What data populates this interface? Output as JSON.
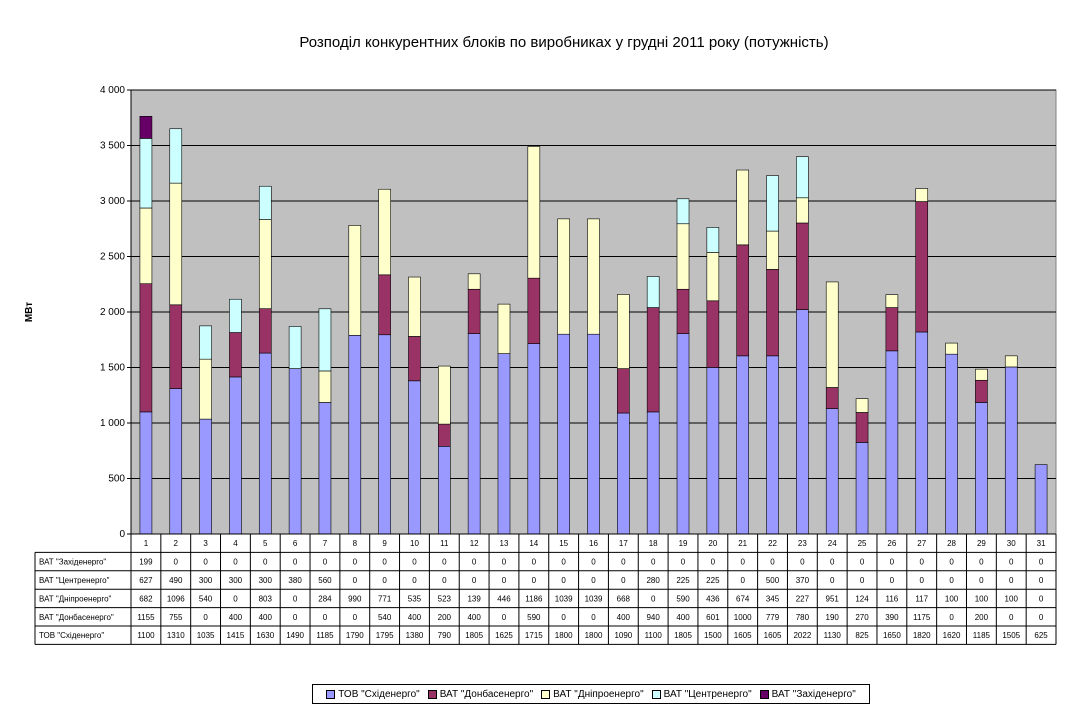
{
  "chart_data": {
    "type": "bar",
    "stacked": true,
    "title": "Розподіл конкурентних блоків по виробниках у грудні 2011 року (потужність)",
    "ylabel": "МВт",
    "xlabel": "",
    "ylim": [
      0,
      4000
    ],
    "yticks": [
      0,
      500,
      1000,
      1500,
      2000,
      2500,
      3000,
      3500,
      4000
    ],
    "ytick_labels": [
      "0",
      "500",
      "1 000",
      "1 500",
      "2 000",
      "2 500",
      "3 000",
      "3 500",
      "4 000"
    ],
    "grid": true,
    "plot_background": "#c0c0c0",
    "legend_position": "bottom",
    "categories": [
      "1",
      "2",
      "3",
      "4",
      "5",
      "6",
      "7",
      "8",
      "9",
      "10",
      "11",
      "12",
      "13",
      "14",
      "15",
      "16",
      "17",
      "18",
      "19",
      "20",
      "21",
      "22",
      "23",
      "24",
      "25",
      "26",
      "27",
      "28",
      "29",
      "30",
      "31"
    ],
    "series": [
      {
        "name": "ТОВ \"Східенерго\"",
        "color": "#9999ff",
        "values": [
          1100,
          1310,
          1035,
          1415,
          1630,
          1490,
          1185,
          1790,
          1795,
          1380,
          790,
          1805,
          1625,
          1715,
          1800,
          1800,
          1090,
          1100,
          1805,
          1500,
          1605,
          1605,
          2022,
          1130,
          825,
          1650,
          1820,
          1620,
          1185,
          1505,
          625
        ]
      },
      {
        "name": "ВАТ \"Донбасенерго\"",
        "color": "#993366",
        "values": [
          1155,
          755,
          0,
          400,
          400,
          0,
          0,
          0,
          540,
          400,
          200,
          400,
          0,
          590,
          0,
          0,
          400,
          940,
          400,
          601,
          1000,
          779,
          780,
          190,
          270,
          390,
          1175,
          0,
          200,
          0,
          0
        ]
      },
      {
        "name": "ВАТ \"Дніпроенерго\"",
        "color": "#ffffcc",
        "values": [
          682,
          1096,
          540,
          0,
          803,
          0,
          284,
          990,
          771,
          535,
          523,
          139,
          446,
          1186,
          1039,
          1039,
          668,
          0,
          590,
          436,
          674,
          345,
          227,
          951,
          124,
          116,
          117,
          100,
          100,
          100,
          0
        ]
      },
      {
        "name": "ВАТ \"Центренерго\"",
        "color": "#ccffff",
        "values": [
          627,
          490,
          300,
          300,
          300,
          380,
          560,
          0,
          0,
          0,
          0,
          0,
          0,
          0,
          0,
          0,
          0,
          280,
          225,
          225,
          0,
          500,
          370,
          0,
          0,
          0,
          0,
          0,
          0,
          0,
          0
        ]
      },
      {
        "name": "ВАТ \"Західенерго\"",
        "color": "#660066",
        "values": [
          199,
          0,
          0,
          0,
          0,
          0,
          0,
          0,
          0,
          0,
          0,
          0,
          0,
          0,
          0,
          0,
          0,
          0,
          0,
          0,
          0,
          0,
          0,
          0,
          0,
          0,
          0,
          0,
          0,
          0,
          0
        ]
      }
    ],
    "table_row_order": [
      4,
      3,
      2,
      1,
      0
    ]
  }
}
